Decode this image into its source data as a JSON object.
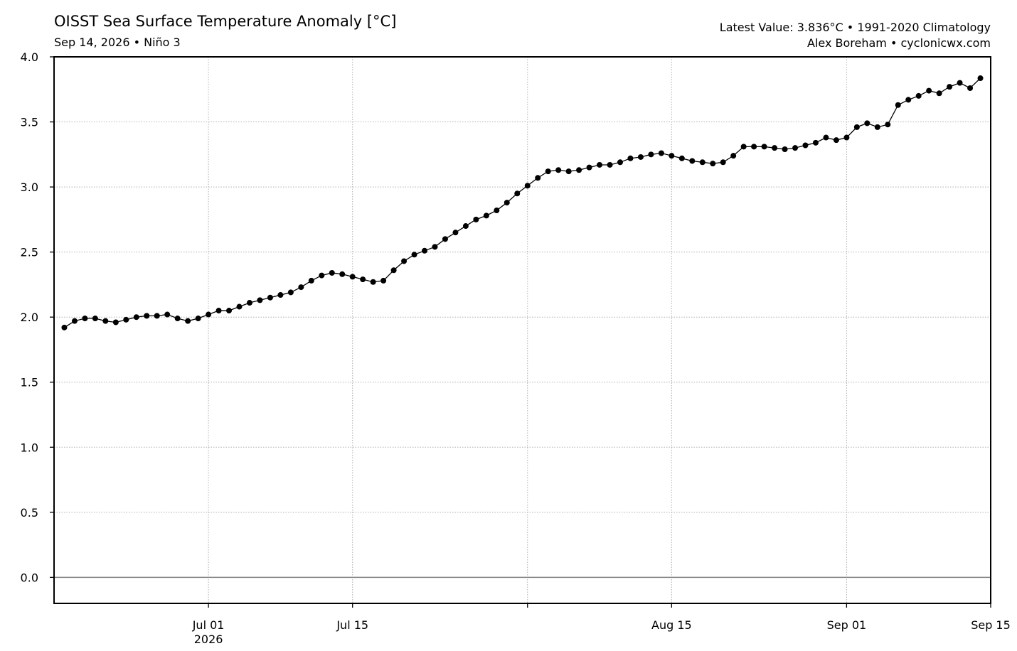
{
  "header": {
    "title": "OISST Sea Surface Temperature Anomaly [°C]",
    "subtitle": "Sep 14, 2026 • Niño 3",
    "info_line1": "Latest Value: 3.836°C • 1991-2020 Climatology",
    "info_line2": "Alex Boreham • cyclonicwx.com"
  },
  "chart_data": {
    "type": "line",
    "title": "OISST Sea Surface Temperature Anomaly [°C]",
    "subtitle": "Sep 14, 2026 • Niño 3",
    "xlabel": "",
    "ylabel": "",
    "xlim": [
      "2026-06-16",
      "2026-09-15"
    ],
    "ylim": [
      -0.2,
      4.0
    ],
    "grid": true,
    "line_color": "#000000",
    "zero_line_color": "#808080",
    "grid_color": "#b0b0b0",
    "yticks": [
      0.0,
      0.5,
      1.0,
      1.5,
      2.0,
      2.5,
      3.0,
      3.5,
      4.0
    ],
    "yticklabels": [
      "0.0",
      "0.5",
      "1.0",
      "1.5",
      "2.0",
      "2.5",
      "3.0",
      "3.5",
      "4.0"
    ],
    "xticks": [
      {
        "date": "2026-07-01",
        "label": "Jul 01",
        "label2": "2026"
      },
      {
        "date": "2026-07-15",
        "label": "Jul 15",
        "label2": ""
      },
      {
        "date": "2026-08-01",
        "label": "",
        "label2": ""
      },
      {
        "date": "2026-08-15",
        "label": "Aug 15",
        "label2": ""
      },
      {
        "date": "2026-09-01",
        "label": "Sep 01",
        "label2": ""
      },
      {
        "date": "2026-09-15",
        "label": "Sep 15",
        "label2": ""
      }
    ],
    "series": [
      {
        "start_date": "2026-06-17",
        "values": [
          1.92,
          1.97,
          1.99,
          1.99,
          1.97,
          1.96,
          1.98,
          2.0,
          2.01,
          2.01,
          2.02,
          1.99,
          1.97,
          1.99,
          2.02,
          2.05,
          2.05,
          2.08,
          2.11,
          2.13,
          2.15,
          2.17,
          2.19,
          2.23,
          2.28,
          2.32,
          2.34,
          2.33,
          2.31,
          2.29,
          2.27,
          2.28,
          2.36,
          2.43,
          2.48,
          2.51,
          2.54,
          2.6,
          2.65,
          2.7,
          2.75,
          2.78,
          2.82,
          2.88,
          2.95,
          3.01,
          3.07,
          3.12,
          3.13,
          3.12,
          3.13,
          3.15,
          3.17,
          3.17,
          3.19,
          3.22,
          3.23,
          3.25,
          3.26,
          3.24,
          3.22,
          3.2,
          3.19,
          3.18,
          3.19,
          3.24,
          3.31,
          3.31,
          3.31,
          3.3,
          3.29,
          3.3,
          3.32,
          3.34,
          3.38,
          3.36,
          3.38,
          3.46,
          3.49,
          3.46,
          3.48,
          3.63,
          3.67,
          3.7,
          3.74,
          3.72,
          3.77,
          3.8,
          3.76,
          3.836
        ]
      }
    ]
  }
}
